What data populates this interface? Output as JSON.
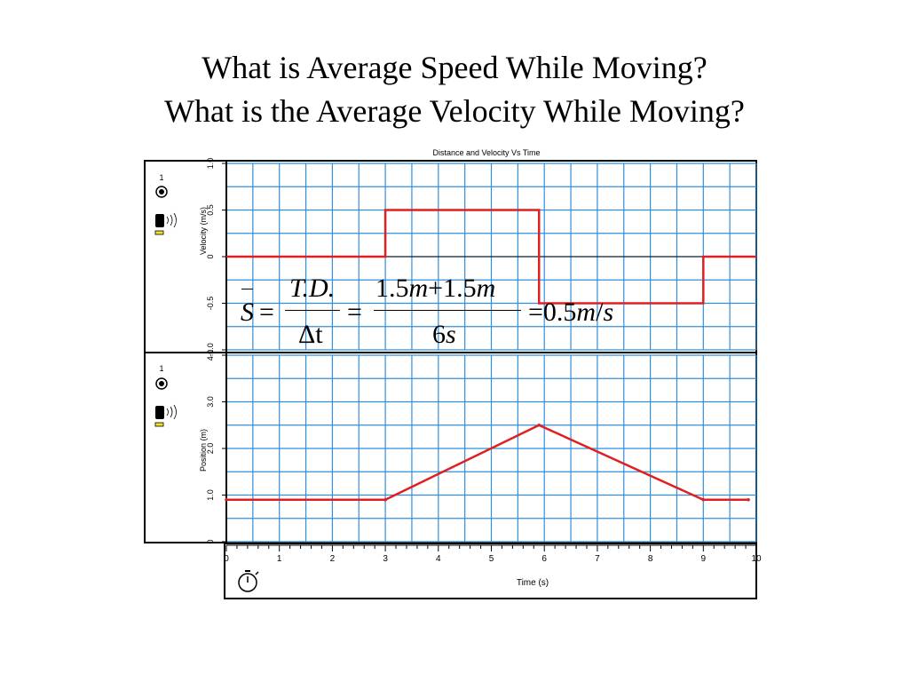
{
  "slide": {
    "title_line1": "What is Average Speed While Moving?",
    "title_line2": "What is the Average Velocity While Moving?"
  },
  "colors": {
    "series": "#e02020",
    "grid": "#2f8fdd",
    "frame": "#000000"
  },
  "icons": [
    "sensor-number-icon",
    "record-dot-icon",
    "motion-sensor-icon",
    "stopwatch-icon"
  ],
  "sensor": {
    "number": "1"
  },
  "formula": {
    "S": "S",
    "eq": "=",
    "TD": "T.D.",
    "delta_t": "Δt",
    "num_a": "1.5",
    "m": "m",
    "plus": "+",
    "num_b": "1.5",
    "den": "6",
    "s": "s",
    "result": "0.5",
    "slash": "/"
  },
  "chart_data": [
    {
      "type": "line",
      "title": "Distance and Velocity Vs Time",
      "ylabel": "Velocity (m/s)",
      "ylim": [
        -1.0,
        1.0
      ],
      "yticks": [
        "1.0",
        "0.5",
        "0",
        "-0.5",
        "-1.0"
      ],
      "xlim": [
        0,
        10
      ],
      "grid": true,
      "x": [
        0,
        3,
        3,
        5.9,
        5.9,
        9,
        9,
        10
      ],
      "y": [
        0,
        0,
        0.5,
        0.5,
        -0.5,
        -0.5,
        0,
        0
      ]
    },
    {
      "type": "line",
      "ylabel": "Position (m)",
      "ylim": [
        0,
        4.0
      ],
      "yticks": [
        "4.0",
        "3.0",
        "2.0",
        "1.0",
        "0"
      ],
      "xlim": [
        0,
        10
      ],
      "grid": true,
      "x": [
        0,
        3,
        5.9,
        9,
        9.85
      ],
      "y": [
        0.9,
        0.9,
        2.5,
        0.9,
        0.9
      ]
    }
  ],
  "xaxis": {
    "label": "Time (s)",
    "ticks": [
      "0",
      "1",
      "2",
      "3",
      "4",
      "5",
      "6",
      "7",
      "8",
      "9",
      "10"
    ]
  }
}
